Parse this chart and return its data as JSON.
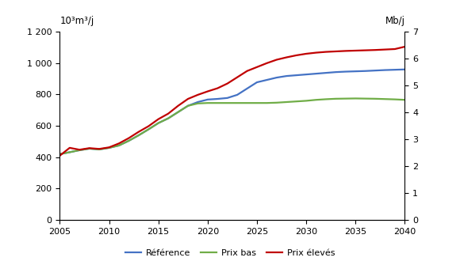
{
  "years": [
    2005,
    2006,
    2007,
    2008,
    2009,
    2010,
    2011,
    2012,
    2013,
    2014,
    2015,
    2016,
    2017,
    2018,
    2019,
    2020,
    2021,
    2022,
    2023,
    2024,
    2025,
    2026,
    2027,
    2028,
    2029,
    2030,
    2031,
    2032,
    2033,
    2034,
    2035,
    2036,
    2037,
    2038,
    2039,
    2040
  ],
  "reference": [
    420,
    432,
    445,
    455,
    450,
    460,
    475,
    505,
    540,
    578,
    618,
    648,
    688,
    728,
    752,
    768,
    772,
    778,
    798,
    838,
    878,
    893,
    908,
    918,
    923,
    928,
    933,
    938,
    943,
    946,
    948,
    950,
    953,
    956,
    958,
    960
  ],
  "prix_bas": [
    420,
    432,
    445,
    455,
    450,
    460,
    475,
    505,
    540,
    578,
    618,
    648,
    688,
    728,
    743,
    746,
    746,
    746,
    746,
    746,
    746,
    746,
    748,
    752,
    756,
    760,
    766,
    770,
    773,
    774,
    775,
    774,
    773,
    771,
    769,
    766
  ],
  "prix_eleves": [
    410,
    460,
    448,
    458,
    453,
    463,
    488,
    522,
    562,
    598,
    643,
    678,
    728,
    772,
    798,
    820,
    840,
    870,
    910,
    950,
    975,
    1000,
    1022,
    1037,
    1050,
    1060,
    1067,
    1072,
    1075,
    1078,
    1080,
    1082,
    1084,
    1087,
    1090,
    1105
  ],
  "ref_color": "#4472C4",
  "bas_color": "#70AD47",
  "eleves_color": "#C00000",
  "ylabel_left": "10³m³/j",
  "ylabel_right": "Mb/j",
  "ylim_left": [
    0,
    1200
  ],
  "ylim_right": [
    0,
    7
  ],
  "yticks_left": [
    0,
    200,
    400,
    600,
    800,
    1000,
    1200
  ],
  "yticks_right": [
    0,
    1,
    2,
    3,
    4,
    5,
    6,
    7
  ],
  "ytick_labels_left": [
    "0",
    "200",
    "400",
    "600",
    "800",
    "1 000",
    "1 200"
  ],
  "xticks": [
    2005,
    2010,
    2015,
    2020,
    2025,
    2030,
    2035,
    2040
  ],
  "legend_labels": [
    "Référence",
    "Prix bas",
    "Prix élevés"
  ],
  "line_width": 1.6
}
